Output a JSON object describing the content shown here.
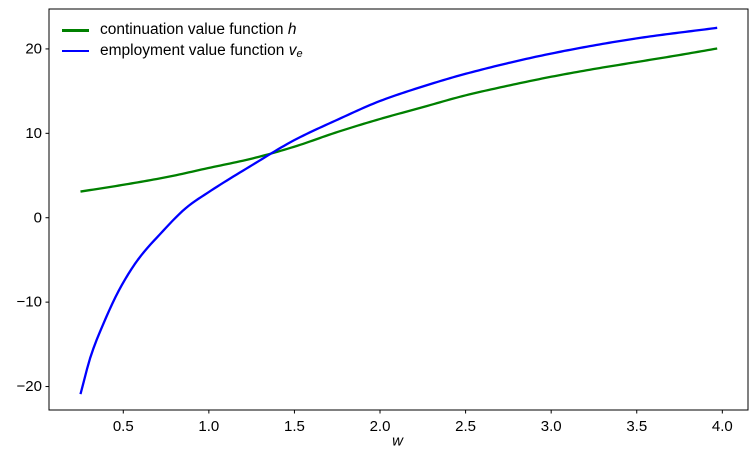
{
  "chart_data": {
    "type": "line",
    "xlabel": "w",
    "xlim": [
      0.066,
      4.15
    ],
    "ylim": [
      -22.78,
      24.73
    ],
    "xticks": [
      0.5,
      1.0,
      1.5,
      2.0,
      2.5,
      3.0,
      3.5,
      4.0
    ],
    "xtick_labels": [
      "0.5",
      "1.0",
      "1.5",
      "2.0",
      "2.5",
      "3.0",
      "3.5",
      "4.0"
    ],
    "yticks": [
      -20,
      -10,
      0,
      10,
      20
    ],
    "ytick_labels": [
      "−20",
      "−10",
      "0",
      "10",
      "20"
    ],
    "grid": false,
    "legend_position": "upper left",
    "series": [
      {
        "name": "continuation value function h",
        "color": "#008000",
        "x": [
          0.25,
          0.5,
          0.75,
          1.0,
          1.25,
          1.5,
          1.75,
          2.0,
          2.25,
          2.5,
          2.75,
          3.0,
          3.25,
          3.5,
          3.75,
          3.97
        ],
        "y": [
          3.1,
          3.9,
          4.8,
          5.9,
          7.0,
          8.42,
          10.15,
          11.7,
          13.1,
          14.5,
          15.65,
          16.7,
          17.62,
          18.45,
          19.28,
          20.05
        ]
      },
      {
        "name": "employment value function v_e",
        "color": "#0000ff",
        "x": [
          0.25,
          0.31,
          0.385,
          0.48,
          0.59,
          0.71,
          0.875,
          1.0,
          1.25,
          1.5,
          1.75,
          2.0,
          2.25,
          2.5,
          3.0,
          3.5,
          3.97
        ],
        "y": [
          -20.9,
          -16.4,
          -12.5,
          -8.4,
          -4.85,
          -2.05,
          1.3,
          3.05,
          6.2,
          9.2,
          11.6,
          13.83,
          15.55,
          17.05,
          19.45,
          21.25,
          22.5
        ]
      }
    ]
  },
  "legend": {
    "items": [
      {
        "text": "continuation value function",
        "math": "h",
        "sub": ""
      },
      {
        "text": "employment value function",
        "math": "v",
        "sub": "e"
      }
    ]
  }
}
